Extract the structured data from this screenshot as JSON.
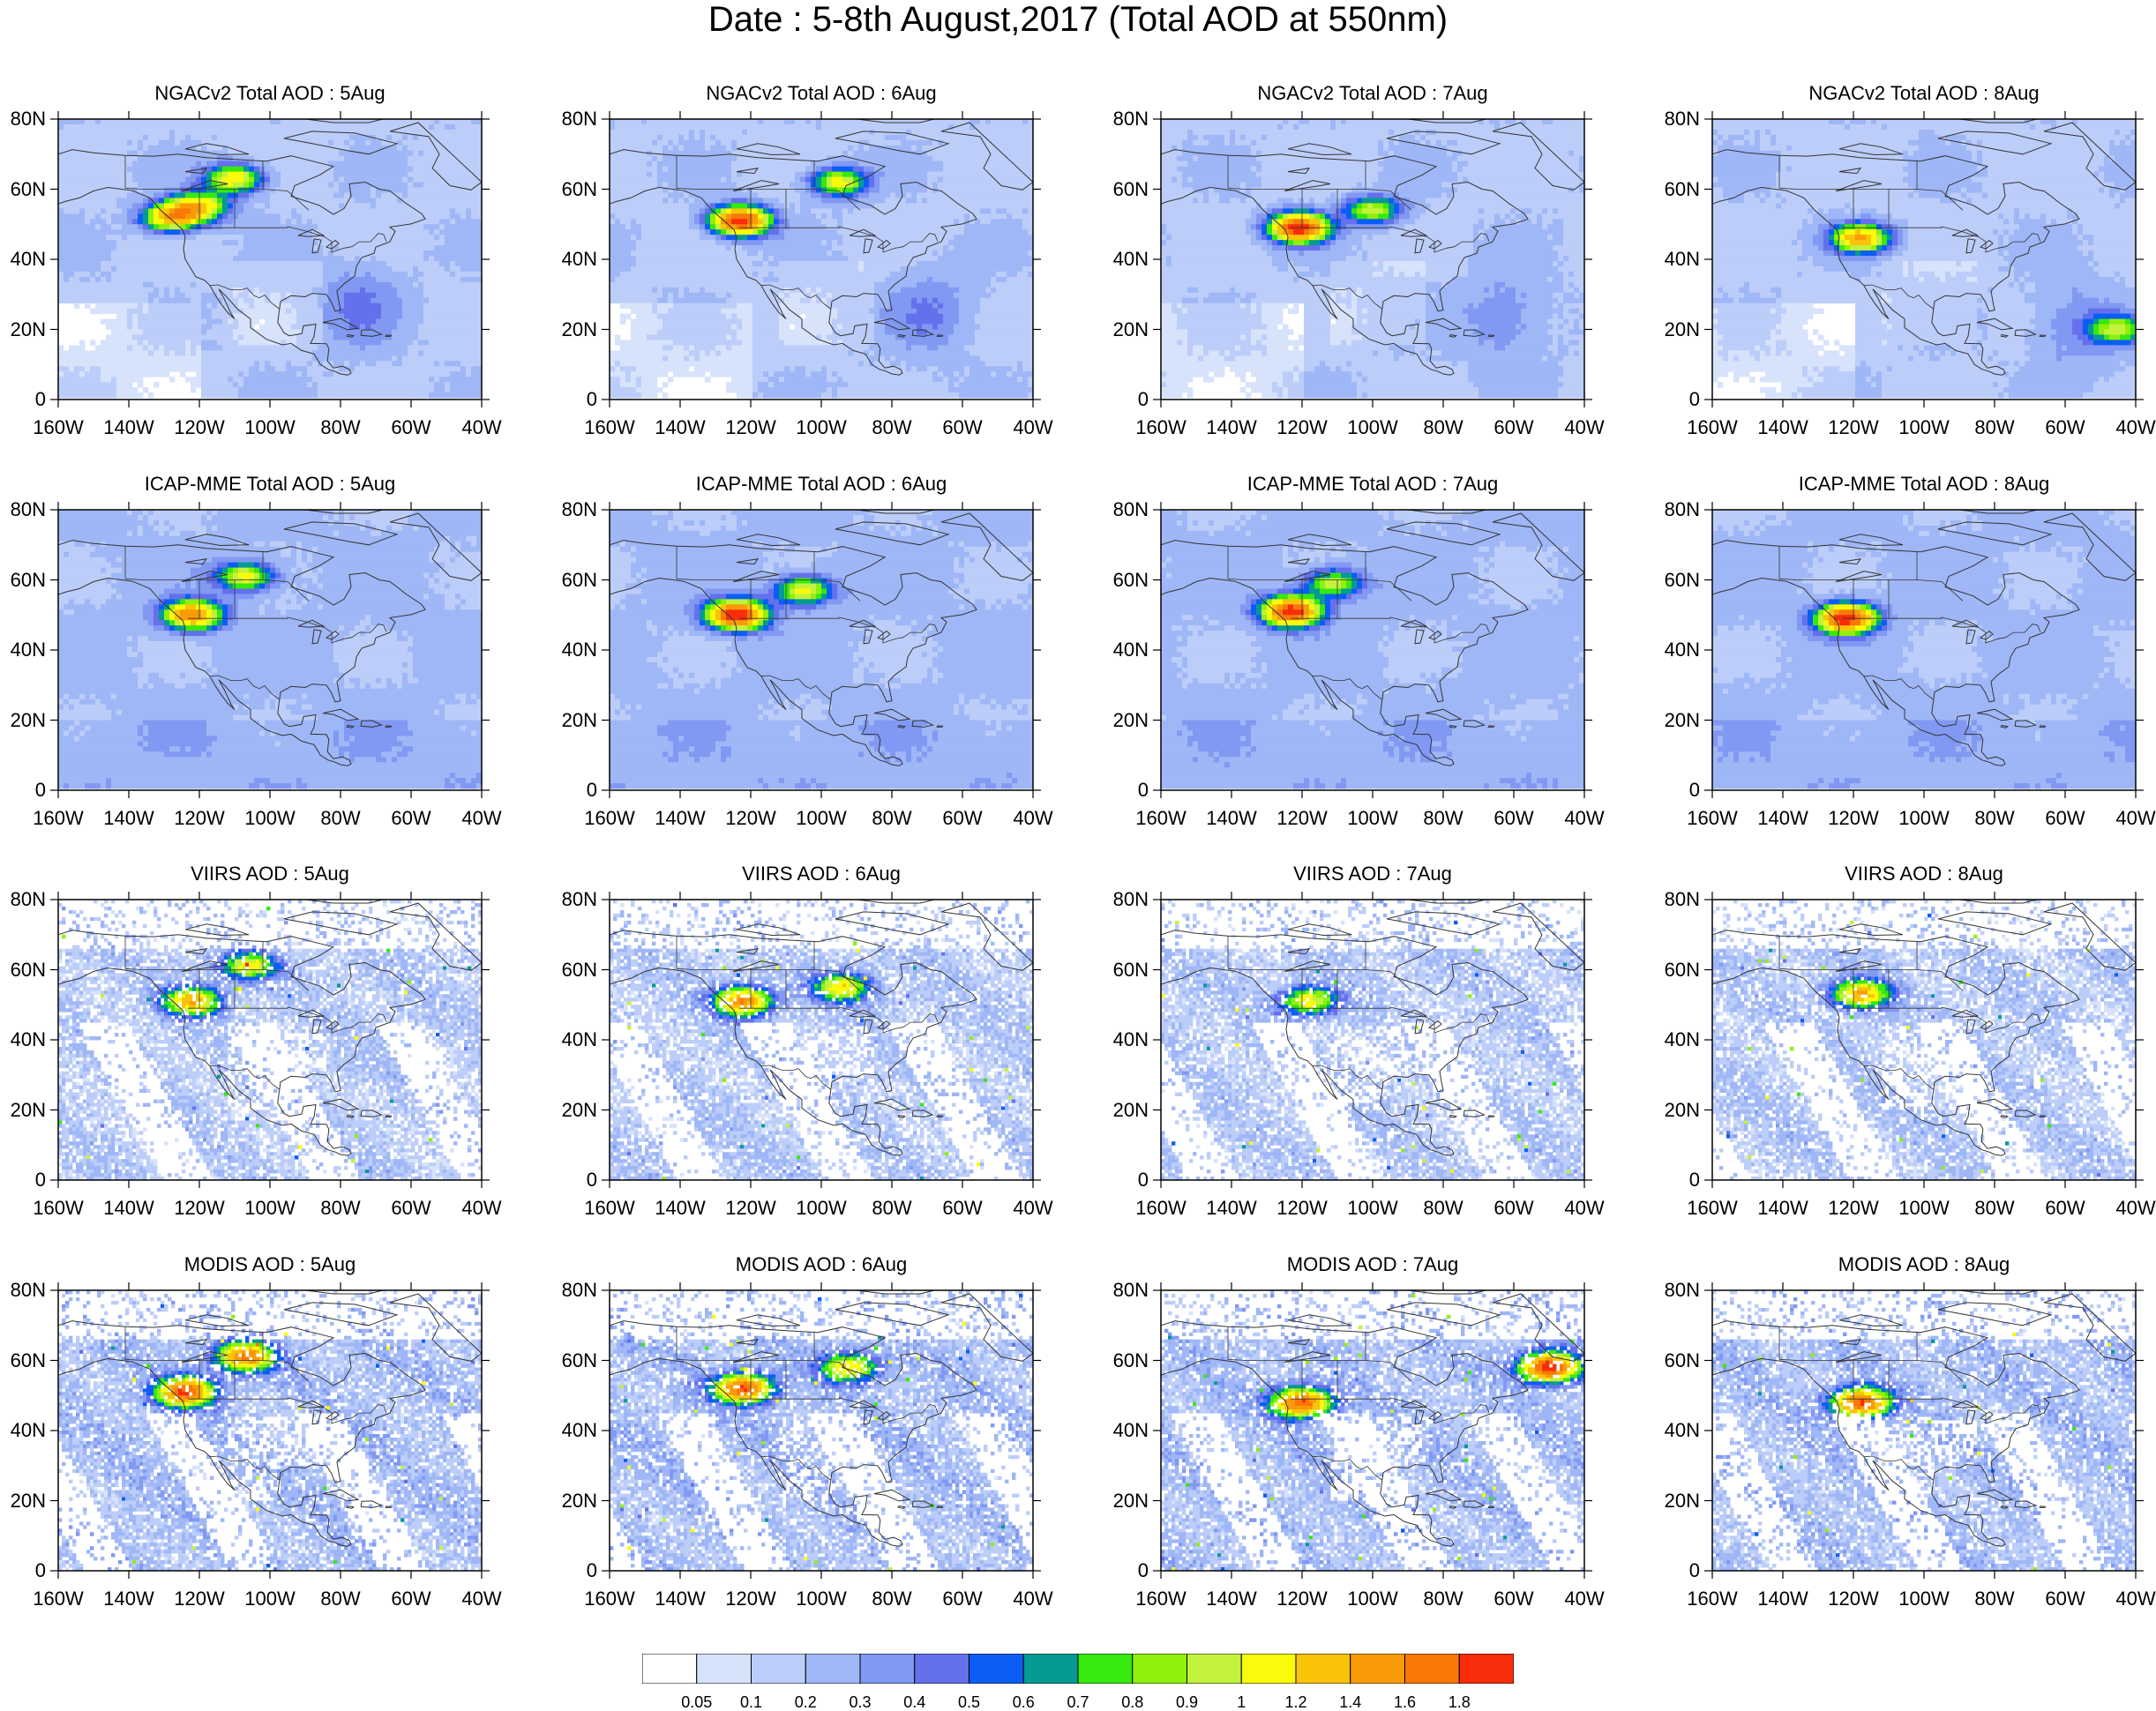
{
  "title": "Date : 5-8th August,2017 (Total AOD at 550nm)",
  "rows": [
    {
      "product": "NGACv2 Total AOD",
      "style": "model"
    },
    {
      "product": "ICAP-MME Total AOD",
      "style": "model"
    },
    {
      "product": "VIIRS AOD",
      "style": "satellite"
    },
    {
      "product": "MODIS AOD",
      "style": "satellite"
    }
  ],
  "panel_titles": [
    [
      "NGACv2 Total AOD : 5Aug",
      "NGACv2 Total AOD : 6Aug",
      "NGACv2 Total AOD : 7Aug",
      "NGACv2 Total AOD : 8Aug"
    ],
    [
      "ICAP-MME Total AOD : 5Aug",
      "ICAP-MME Total AOD : 6Aug",
      "ICAP-MME Total AOD : 7Aug",
      "ICAP-MME Total AOD : 8Aug"
    ],
    [
      "VIIRS AOD : 5Aug",
      "VIIRS AOD : 6Aug",
      "VIIRS AOD : 7Aug",
      "VIIRS AOD : 8Aug"
    ],
    [
      "MODIS AOD : 5Aug",
      "MODIS AOD : 6Aug",
      "MODIS AOD : 7Aug",
      "MODIS AOD : 8Aug"
    ]
  ],
  "chart_data": {
    "type": "heatmap",
    "title": "Date : 5-8th August,2017 (Total AOD at 550nm)",
    "variable": "Total AOD at 550nm",
    "dates": [
      "5Aug",
      "6Aug",
      "7Aug",
      "8Aug"
    ],
    "lon_range": [
      -160,
      -40
    ],
    "lat_range": [
      0,
      80
    ],
    "lon_ticks": [
      "160W",
      "140W",
      "120W",
      "100W",
      "80W",
      "60W",
      "40W"
    ],
    "lat_ticks": [
      "80N",
      "60N",
      "40N",
      "20N",
      "0"
    ],
    "colorbar": {
      "levels": [
        "0.05",
        "0.1",
        "0.2",
        "0.3",
        "0.4",
        "0.5",
        "0.6",
        "0.7",
        "0.8",
        "0.9",
        "1",
        "1.2",
        "1.4",
        "1.6",
        "1.8"
      ],
      "colors": [
        "#ffffff",
        "#d7e2fb",
        "#bccdf9",
        "#9fb7f6",
        "#8199f2",
        "#6470ec",
        "#0a5ef5",
        "#059a94",
        "#36e90e",
        "#8ff00c",
        "#c2f23c",
        "#fafa0a",
        "#f9c30a",
        "#f99b09",
        "#f97808",
        "#f92d0a"
      ]
    },
    "plumes": [
      [
        [
          {
            "lon": -110,
            "lat": 63,
            "aod": 1.0
          },
          {
            "lon": -120,
            "lat": 55,
            "aod": 1.0
          },
          {
            "lon": -128,
            "lat": 52,
            "aod": 1.2
          }
        ],
        [
          {
            "lon": -123,
            "lat": 51,
            "aod": 1.8
          },
          {
            "lon": -95,
            "lat": 62,
            "aod": 0.9
          }
        ],
        [
          {
            "lon": -121,
            "lat": 49,
            "aod": 1.8
          },
          {
            "lon": -100,
            "lat": 54,
            "aod": 0.8
          }
        ],
        [
          {
            "lon": -118,
            "lat": 46,
            "aod": 1.2
          },
          {
            "lon": -45,
            "lat": 20,
            "aod": 0.7
          }
        ]
      ],
      [
        [
          {
            "lon": -122,
            "lat": 50,
            "aod": 1.4
          },
          {
            "lon": -107,
            "lat": 61,
            "aod": 0.9
          }
        ],
        [
          {
            "lon": -124,
            "lat": 50,
            "aod": 1.8
          },
          {
            "lon": -105,
            "lat": 57,
            "aod": 0.9
          }
        ],
        [
          {
            "lon": -123,
            "lat": 51,
            "aod": 1.8
          },
          {
            "lon": -111,
            "lat": 59,
            "aod": 0.8
          }
        ],
        [
          {
            "lon": -122,
            "lat": 49,
            "aod": 1.8
          }
        ]
      ],
      [
        [
          {
            "lon": -122,
            "lat": 51,
            "aod": 1.2
          },
          {
            "lon": -106,
            "lat": 61,
            "aod": 0.9
          }
        ],
        [
          {
            "lon": -122,
            "lat": 51,
            "aod": 1.4
          },
          {
            "lon": -94,
            "lat": 55,
            "aod": 1.0
          }
        ],
        [
          {
            "lon": -118,
            "lat": 51,
            "aod": 1.0
          }
        ],
        [
          {
            "lon": -118,
            "lat": 53,
            "aod": 1.2
          }
        ]
      ],
      [
        [
          {
            "lon": -124,
            "lat": 51,
            "aod": 1.6
          },
          {
            "lon": -107,
            "lat": 61,
            "aod": 1.4
          }
        ],
        [
          {
            "lon": -122,
            "lat": 52,
            "aod": 1.6
          },
          {
            "lon": -92,
            "lat": 58,
            "aod": 1.0
          }
        ],
        [
          {
            "lon": -120,
            "lat": 48,
            "aod": 1.6
          },
          {
            "lon": -50,
            "lat": 58,
            "aod": 1.8
          }
        ],
        [
          {
            "lon": -118,
            "lat": 48,
            "aod": 1.6
          }
        ]
      ]
    ]
  }
}
